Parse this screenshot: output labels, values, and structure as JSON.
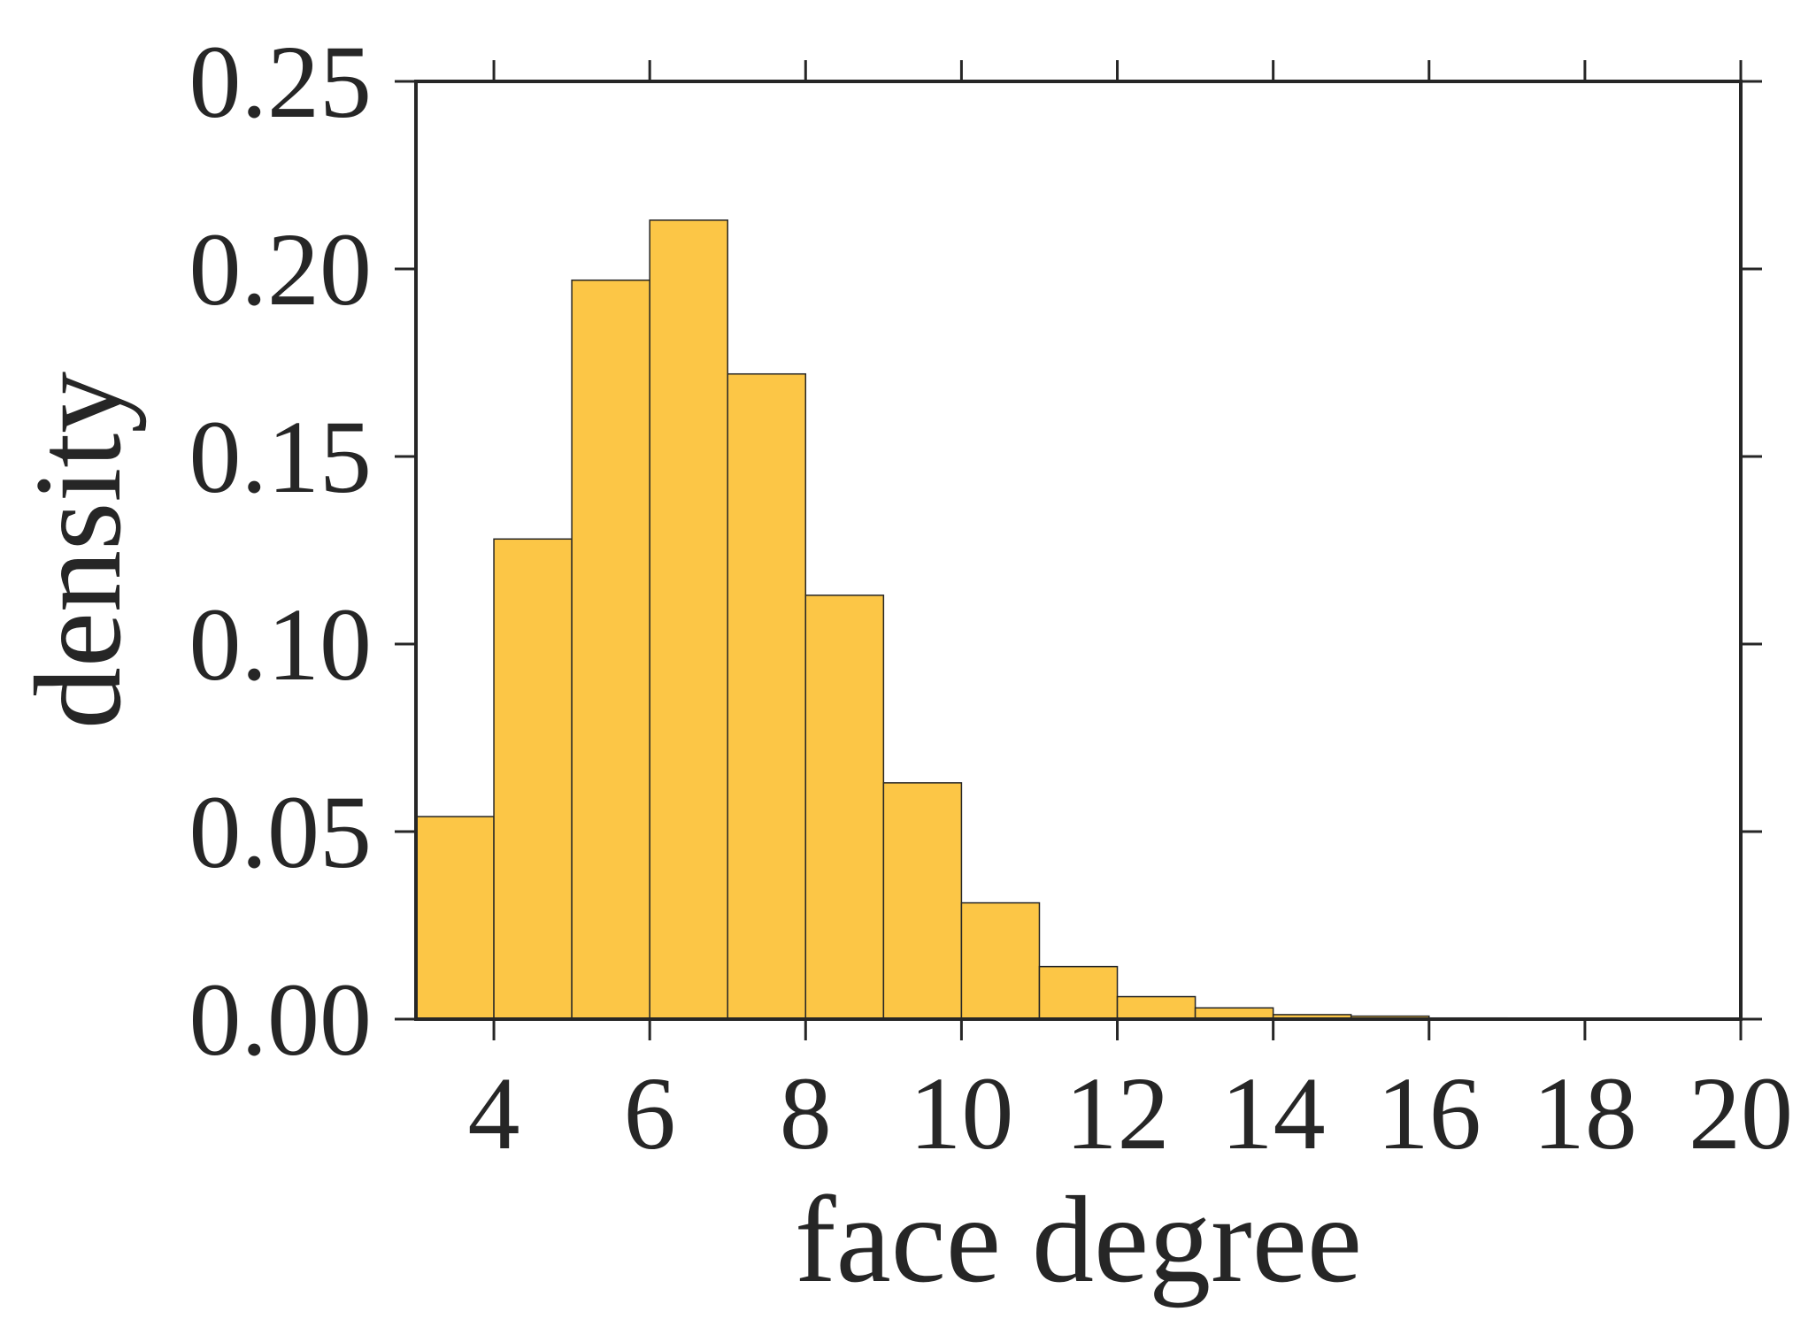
{
  "chart_data": {
    "type": "bar",
    "title": "",
    "xlabel": "face degree",
    "ylabel": "density",
    "bins": [
      {
        "x0": 3,
        "x1": 4,
        "value": 0.054
      },
      {
        "x0": 4,
        "x1": 5,
        "value": 0.128
      },
      {
        "x0": 5,
        "x1": 6,
        "value": 0.197
      },
      {
        "x0": 6,
        "x1": 7,
        "value": 0.213
      },
      {
        "x0": 7,
        "x1": 8,
        "value": 0.172
      },
      {
        "x0": 8,
        "x1": 9,
        "value": 0.113
      },
      {
        "x0": 9,
        "x1": 10,
        "value": 0.063
      },
      {
        "x0": 10,
        "x1": 11,
        "value": 0.031
      },
      {
        "x0": 11,
        "x1": 12,
        "value": 0.014
      },
      {
        "x0": 12,
        "x1": 13,
        "value": 0.006
      },
      {
        "x0": 13,
        "x1": 14,
        "value": 0.003
      },
      {
        "x0": 14,
        "x1": 15,
        "value": 0.0012
      },
      {
        "x0": 15,
        "x1": 16,
        "value": 0.0008
      },
      {
        "x0": 16,
        "x1": 17,
        "value": 0.0003
      },
      {
        "x0": 17,
        "x1": 18,
        "value": 0.0002
      },
      {
        "x0": 18,
        "x1": 19,
        "value": 0.0001
      },
      {
        "x0": 19,
        "x1": 20,
        "value": 0.0001
      }
    ],
    "xlim": [
      3,
      20
    ],
    "ylim": [
      0,
      0.25
    ],
    "xticks": [
      4,
      6,
      8,
      10,
      12,
      14,
      16,
      18,
      20
    ],
    "xtick_labels": [
      "4",
      "6",
      "8",
      "10",
      "12",
      "14",
      "16",
      "18",
      "20"
    ],
    "yticks": [
      0,
      0.05,
      0.1,
      0.15,
      0.2,
      0.25
    ],
    "ytick_labels": [
      "0.00",
      "0.05",
      "0.10",
      "0.15",
      "0.20",
      "0.25"
    ],
    "grid": false,
    "bar_color": "#fcc646",
    "edge_color": "#262626"
  }
}
